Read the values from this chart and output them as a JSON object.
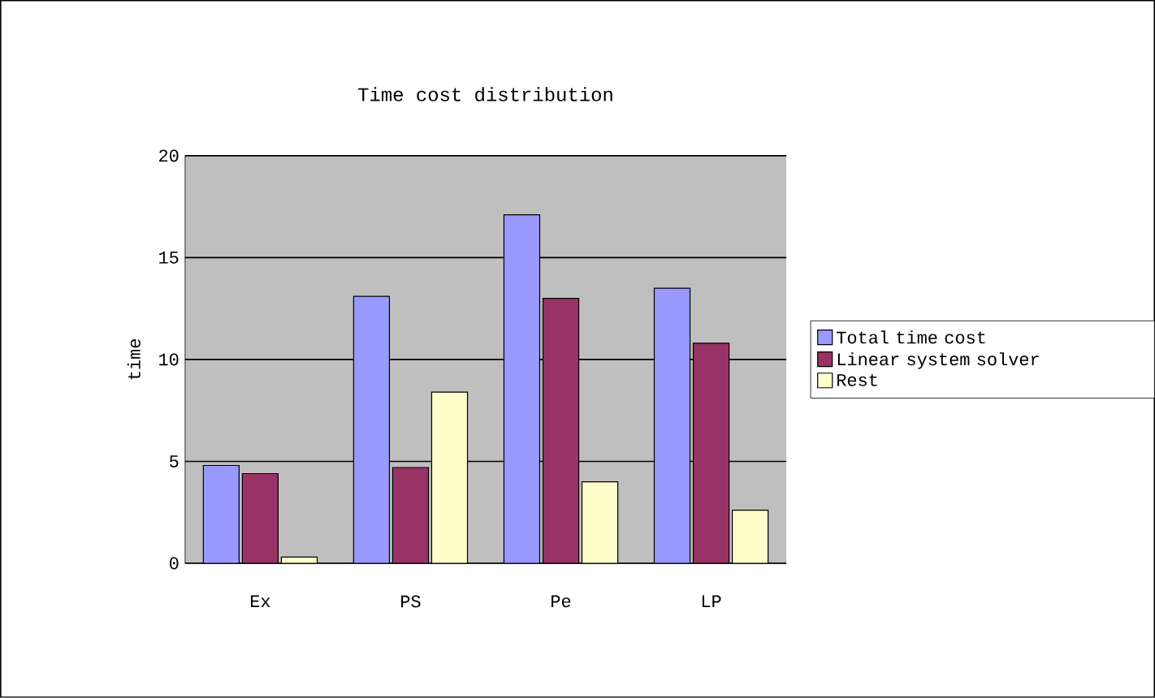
{
  "chart_data": {
    "type": "bar",
    "title": "Time cost distribution",
    "ylabel": "time",
    "categories": [
      "Ex",
      "PS",
      "Pe",
      "LP"
    ],
    "series": [
      {
        "name": "Total time cost",
        "color": "#9999ff",
        "values": [
          4.8,
          13.1,
          17.1,
          13.5
        ]
      },
      {
        "name": "Linear system solver",
        "color": "#993366",
        "values": [
          4.4,
          4.7,
          13.0,
          10.8
        ]
      },
      {
        "name": "Rest",
        "color": "#ffffcc",
        "values": [
          0.3,
          8.4,
          4.0,
          2.6
        ]
      }
    ],
    "ylim": [
      0,
      20
    ],
    "yticks": [
      0,
      5,
      10,
      15,
      20
    ],
    "grid": "y",
    "legend": "right"
  }
}
